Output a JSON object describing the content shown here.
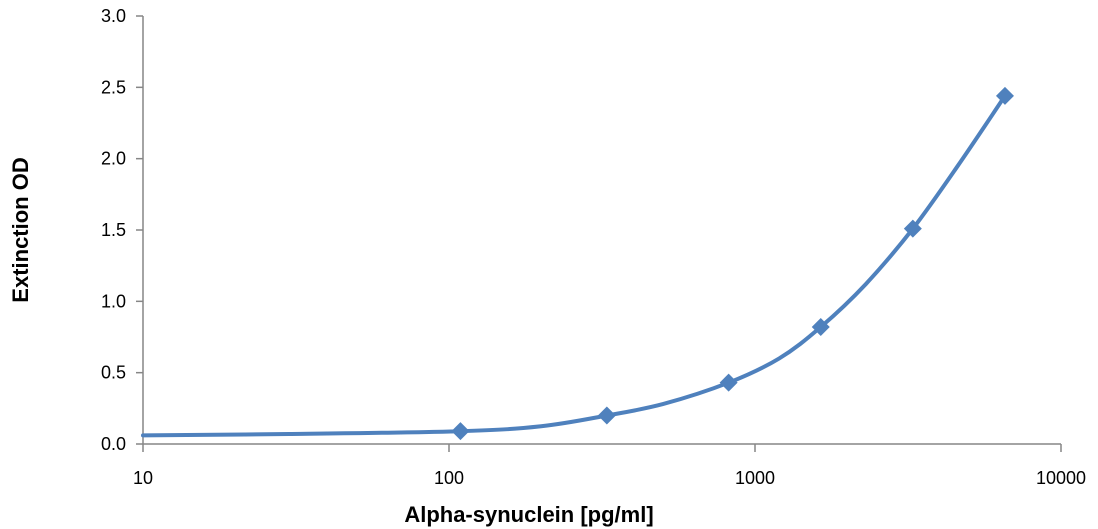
{
  "chart_data": {
    "type": "scatter",
    "title": "",
    "xlabel": "Alpha-synuclein [pg/ml]",
    "ylabel": "Extinction OD",
    "xscale": "log",
    "xlim": [
      10,
      10000
    ],
    "ylim": [
      0,
      3.0
    ],
    "grid": false,
    "legend": "none",
    "x_ticks": [
      "10",
      "100",
      "1000",
      "10000"
    ],
    "y_ticks": [
      "0.0",
      "0.5",
      "1.0",
      "1.5",
      "2.0",
      "2.5",
      "3.0"
    ],
    "series": [
      {
        "marker": "diamond",
        "color": "#4F81BD",
        "smoothed_line": true,
        "points": [
          {
            "x": 109,
            "y": 0.09
          },
          {
            "x": 328,
            "y": 0.2
          },
          {
            "x": 820,
            "y": 0.43
          },
          {
            "x": 1640,
            "y": 0.82
          },
          {
            "x": 3280,
            "y": 1.51
          },
          {
            "x": 6560,
            "y": 2.44
          }
        ],
        "curve": [
          {
            "x": 10,
            "y": 0.06
          },
          {
            "x": 30,
            "y": 0.07
          },
          {
            "x": 109,
            "y": 0.09
          },
          {
            "x": 200,
            "y": 0.125
          },
          {
            "x": 328,
            "y": 0.2
          },
          {
            "x": 500,
            "y": 0.28
          },
          {
            "x": 820,
            "y": 0.43
          },
          {
            "x": 1200,
            "y": 0.6
          },
          {
            "x": 1640,
            "y": 0.82
          },
          {
            "x": 2300,
            "y": 1.12
          },
          {
            "x": 3280,
            "y": 1.51
          },
          {
            "x": 4600,
            "y": 1.95
          },
          {
            "x": 6560,
            "y": 2.44
          }
        ]
      }
    ]
  }
}
